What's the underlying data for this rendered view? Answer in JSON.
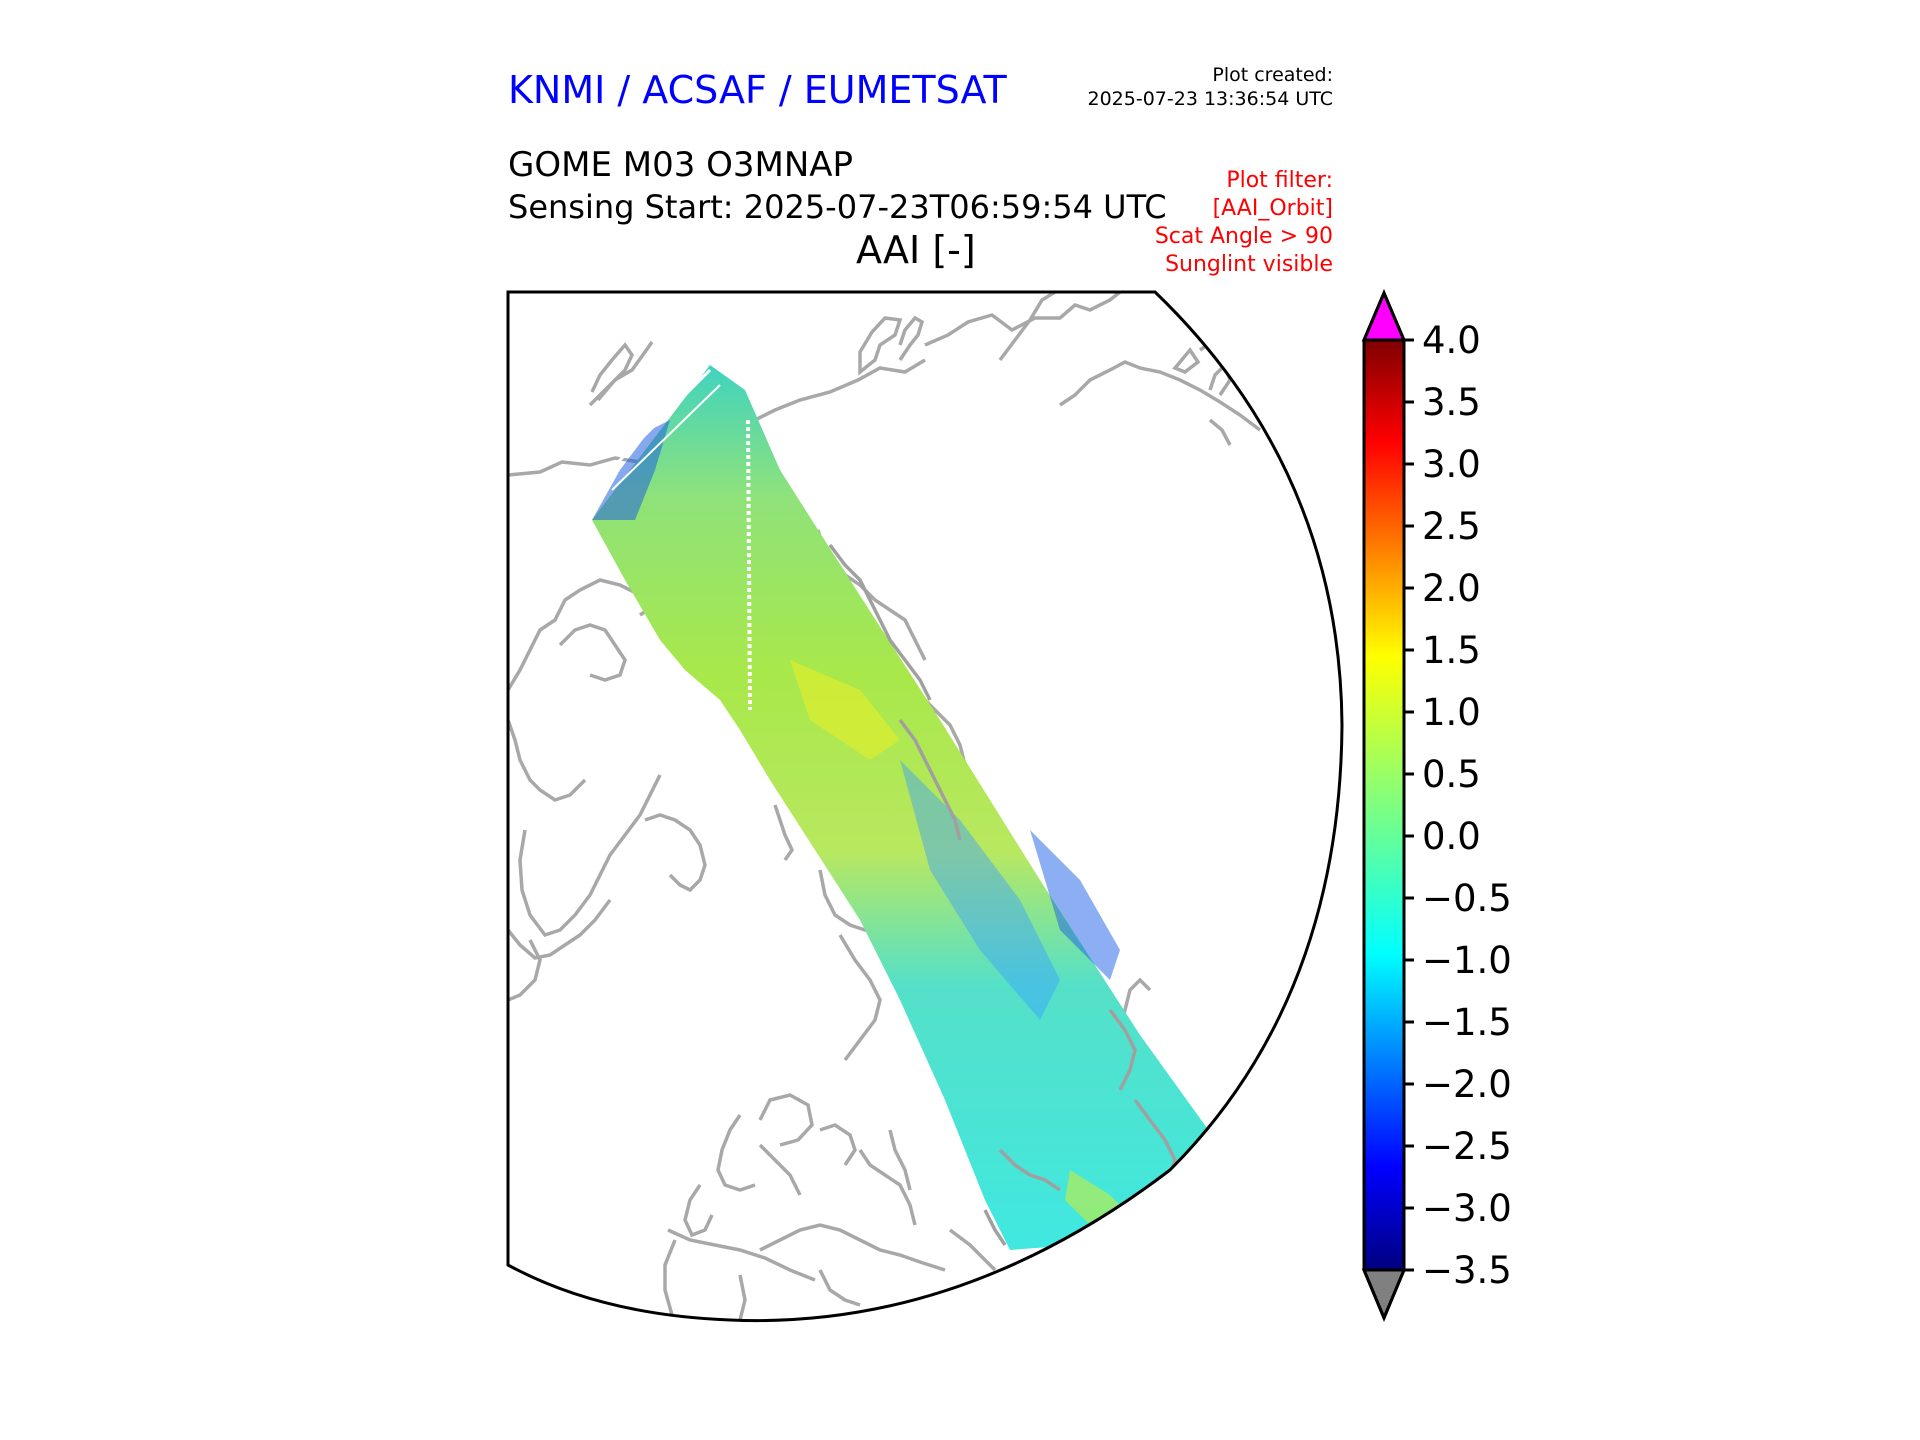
{
  "header": {
    "organization": "KNMI / ACSAF / EUMETSAT",
    "plot_created_label": "Plot created:",
    "plot_created_value": "2025-07-23 13:36:54 UTC",
    "product": "GOME M03 O3MNAP",
    "sensing_start": "Sensing Start: 2025-07-23T06:59:54 UTC",
    "variable_title": "AAI [-]"
  },
  "filters": [
    "Plot filter:",
    "[AAI_Orbit]",
    "Scat Angle > 90",
    "Sunglint visible"
  ],
  "colorbar": {
    "ticks": [
      "4.0",
      "3.5",
      "3.0",
      "2.5",
      "2.0",
      "1.5",
      "1.0",
      "0.5",
      "0.0",
      "−0.5",
      "−1.0",
      "−1.5",
      "−2.0",
      "−2.5",
      "−3.0",
      "−3.5"
    ],
    "over_color": "#ff00ff",
    "under_color": "#808080"
  },
  "colors": {
    "title_blue": "#0000ff",
    "filter_red": "#ff0000",
    "coastline": "#a8a8a8"
  }
}
